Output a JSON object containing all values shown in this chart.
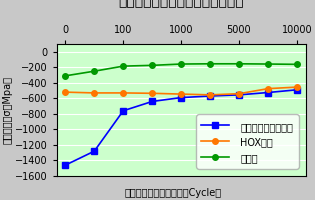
{
  "title": "熱疲労試験による残留応力の変化",
  "xlabel_bottom": "熱疲労試験サイクル数（Cycle）",
  "ylabel": "圧縮応力値σ（Mpa）",
  "ylim": [
    -1600,
    100
  ],
  "yticks": [
    0,
    -200,
    -400,
    -600,
    -800,
    -1000,
    -1200,
    -1400,
    -1600
  ],
  "x_tick_labels": [
    "0",
    "100",
    "1000",
    "5000",
    "10000"
  ],
  "series": [
    {
      "label": "ニューカナック処理",
      "color": "#0000ff",
      "marker": "s",
      "y": [
        -1460,
        -1280,
        -760,
        -640,
        -590,
        -570,
        -555,
        -525,
        -490
      ]
    },
    {
      "label": "HOX処理",
      "color": "#ff7700",
      "marker": "o",
      "y": [
        -520,
        -530,
        -530,
        -535,
        -545,
        -555,
        -540,
        -475,
        -455
      ]
    },
    {
      "label": "無処理",
      "color": "#009900",
      "marker": "o",
      "y": [
        -310,
        -250,
        -185,
        -175,
        -158,
        -155,
        -155,
        -158,
        -162
      ]
    }
  ],
  "plot_bg": "#ccffcc",
  "outer_bg": "#c8c8c8",
  "title_fontsize": 9,
  "label_fontsize": 7,
  "tick_fontsize": 7,
  "legend_fontsize": 7
}
